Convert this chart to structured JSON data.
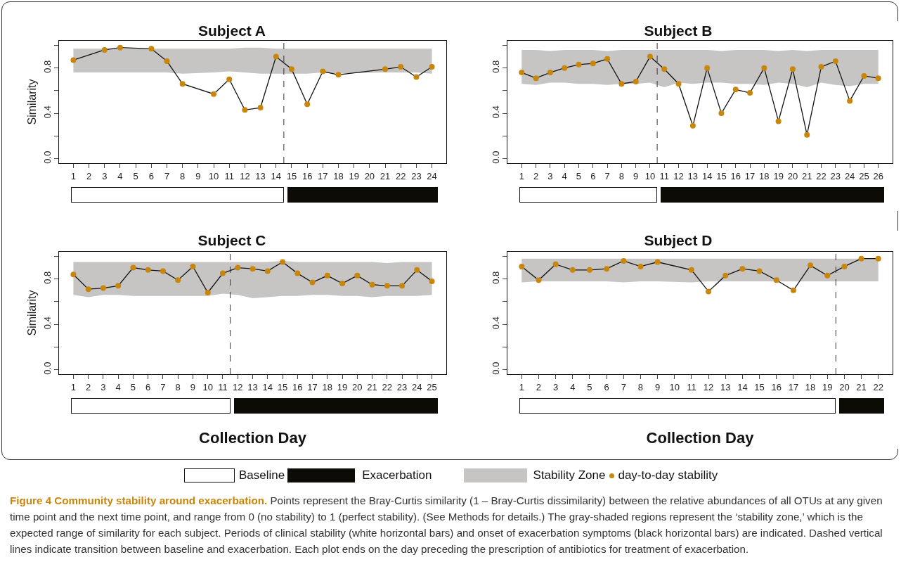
{
  "chart_data": [
    {
      "type": "line",
      "title": "Subject A",
      "ylabel": "Similarity",
      "xlim": [
        0.08,
        24.92
      ],
      "xticks": [
        1,
        2,
        3,
        4,
        5,
        6,
        7,
        8,
        9,
        10,
        11,
        12,
        13,
        14,
        15,
        16,
        17,
        18,
        19,
        20,
        21,
        22,
        23,
        24
      ],
      "ylim": [
        -0.04,
        1.04
      ],
      "yticks": [
        {
          "value": 0,
          "label": "0.0"
        },
        {
          "value": 0.2,
          "label": null
        },
        {
          "value": 0.4,
          "label": "0.4"
        },
        {
          "value": 0.6,
          "label": null
        },
        {
          "value": 0.8,
          "label": "0.8"
        },
        {
          "value": 1,
          "label": null
        }
      ],
      "grid": false,
      "marker": "circle",
      "line_style": "solid",
      "series": [
        {
          "color": "#c8860a",
          "x": [
            1,
            3,
            4,
            6,
            7,
            8,
            10,
            11,
            12,
            13,
            14,
            15,
            16,
            17,
            18,
            21,
            22,
            23,
            24
          ],
          "values": [
            0.87,
            0.96,
            0.98,
            0.97,
            0.86,
            0.66,
            0.57,
            0.7,
            0.43,
            0.45,
            0.9,
            0.79,
            0.48,
            0.77,
            0.74,
            0.79,
            0.81,
            0.72,
            0.81
          ],
          "lower": [
            0.76,
            0.76,
            0.76,
            0.76,
            0.76,
            0.75,
            0.76,
            0.77,
            0.76,
            0.75,
            0.75,
            0.75,
            0.75,
            0.76,
            0.75,
            0.76,
            0.76,
            0.76,
            0.75
          ],
          "upper": [
            0.97,
            0.97,
            0.97,
            0.97,
            0.97,
            0.97,
            0.97,
            0.97,
            0.98,
            0.98,
            0.97,
            0.97,
            0.97,
            0.97,
            0.97,
            0.97,
            0.97,
            0.97,
            0.97
          ]
        }
      ],
      "ref_lines": [
        {
          "axis": "x",
          "value": 14.5,
          "line_style": "dashed"
        }
      ]
    },
    {
      "type": "line",
      "title": "Subject B",
      "xlim": [
        0,
        27
      ],
      "xticks": [
        1,
        2,
        3,
        4,
        5,
        6,
        7,
        8,
        9,
        10,
        11,
        12,
        13,
        14,
        15,
        16,
        17,
        18,
        19,
        20,
        21,
        22,
        23,
        24,
        25,
        26
      ],
      "ylim": [
        -0.04,
        1.04
      ],
      "yticks": [
        {
          "value": 0,
          "label": "0.0"
        },
        {
          "value": 0.2,
          "label": null
        },
        {
          "value": 0.4,
          "label": "0.4"
        },
        {
          "value": 0.6,
          "label": null
        },
        {
          "value": 0.8,
          "label": "0.8"
        },
        {
          "value": 1,
          "label": null
        }
      ],
      "grid": false,
      "marker": "circle",
      "line_style": "solid",
      "series": [
        {
          "color": "#c8860a",
          "x": [
            1,
            2,
            3,
            4,
            5,
            6,
            7,
            8,
            9,
            10,
            11,
            12,
            13,
            14,
            15,
            16,
            17,
            18,
            19,
            20,
            21,
            22,
            23,
            24,
            25,
            26
          ],
          "values": [
            0.76,
            0.71,
            0.76,
            0.8,
            0.83,
            0.84,
            0.88,
            0.66,
            0.68,
            0.9,
            0.79,
            0.66,
            0.29,
            0.8,
            0.4,
            0.61,
            0.58,
            0.8,
            0.33,
            0.79,
            0.21,
            0.81,
            0.86,
            0.51,
            0.73,
            0.71
          ],
          "lower": [
            0.66,
            0.65,
            0.67,
            0.67,
            0.66,
            0.66,
            0.65,
            0.66,
            0.66,
            0.67,
            0.63,
            0.67,
            0.66,
            0.67,
            0.67,
            0.66,
            0.66,
            0.65,
            0.67,
            0.66,
            0.63,
            0.67,
            0.65,
            0.64,
            0.66,
            0.66
          ],
          "upper": [
            0.96,
            0.96,
            0.95,
            0.96,
            0.96,
            0.96,
            0.95,
            0.96,
            0.96,
            0.96,
            0.96,
            0.96,
            0.96,
            0.96,
            0.95,
            0.96,
            0.96,
            0.96,
            0.95,
            0.96,
            0.95,
            0.96,
            0.96,
            0.96,
            0.96,
            0.96
          ]
        }
      ],
      "ref_lines": [
        {
          "axis": "x",
          "value": 10.5,
          "line_style": "dashed"
        }
      ]
    },
    {
      "type": "line",
      "title": "Subject C",
      "xlabel": "Collection Day",
      "ylabel": "Similarity",
      "xlim": [
        0.04,
        25.96
      ],
      "xticks": [
        1,
        2,
        3,
        4,
        5,
        6,
        7,
        8,
        9,
        10,
        11,
        12,
        13,
        14,
        15,
        16,
        17,
        18,
        19,
        20,
        21,
        22,
        23,
        24,
        25
      ],
      "ylim": [
        -0.04,
        1.04
      ],
      "yticks": [
        {
          "value": 0,
          "label": "0.0"
        },
        {
          "value": 0.2,
          "label": null
        },
        {
          "value": 0.4,
          "label": "0.4"
        },
        {
          "value": 0.6,
          "label": null
        },
        {
          "value": 0.8,
          "label": "0.8"
        },
        {
          "value": 1,
          "label": null
        }
      ],
      "grid": false,
      "marker": "circle",
      "line_style": "solid",
      "series": [
        {
          "color": "#c8860a",
          "x": [
            1,
            2,
            3,
            4,
            5,
            6,
            7,
            8,
            9,
            10,
            11,
            12,
            13,
            14,
            15,
            16,
            17,
            18,
            19,
            20,
            21,
            22,
            23,
            24,
            25
          ],
          "values": [
            0.84,
            0.71,
            0.72,
            0.74,
            0.9,
            0.88,
            0.87,
            0.79,
            0.91,
            0.68,
            0.85,
            0.9,
            0.89,
            0.87,
            0.95,
            0.85,
            0.77,
            0.83,
            0.76,
            0.83,
            0.75,
            0.74,
            0.74,
            0.88,
            0.78
          ],
          "lower": [
            0.66,
            0.64,
            0.66,
            0.66,
            0.65,
            0.65,
            0.65,
            0.65,
            0.65,
            0.65,
            0.67,
            0.66,
            0.63,
            0.64,
            0.65,
            0.65,
            0.66,
            0.66,
            0.65,
            0.65,
            0.64,
            0.65,
            0.65,
            0.65,
            0.66
          ],
          "upper": [
            0.95,
            0.95,
            0.95,
            0.95,
            0.95,
            0.95,
            0.95,
            0.95,
            0.95,
            0.95,
            0.95,
            0.95,
            0.95,
            0.95,
            0.96,
            0.95,
            0.95,
            0.95,
            0.95,
            0.95,
            0.95,
            0.94,
            0.95,
            0.95,
            0.95
          ]
        }
      ],
      "ref_lines": [
        {
          "axis": "x",
          "value": 11.5,
          "line_style": "dashed"
        }
      ]
    },
    {
      "type": "line",
      "title": "Subject D",
      "xlabel": "Collection Day",
      "xlim": [
        0.16,
        22.84
      ],
      "xticks": [
        1,
        2,
        3,
        4,
        5,
        6,
        7,
        8,
        9,
        10,
        11,
        12,
        13,
        14,
        15,
        16,
        17,
        18,
        19,
        20,
        21,
        22
      ],
      "ylim": [
        -0.04,
        1.04
      ],
      "yticks": [
        {
          "value": 0,
          "label": "0.0"
        },
        {
          "value": 0.2,
          "label": null
        },
        {
          "value": 0.4,
          "label": "0.4"
        },
        {
          "value": 0.6,
          "label": null
        },
        {
          "value": 0.8,
          "label": "0.8"
        },
        {
          "value": 1,
          "label": null
        }
      ],
      "grid": false,
      "marker": "circle",
      "line_style": "solid",
      "series": [
        {
          "color": "#c8860a",
          "x": [
            1,
            2,
            3,
            4,
            5,
            6,
            7,
            8,
            9,
            11,
            12,
            13,
            14,
            15,
            16,
            17,
            18,
            19,
            20,
            21,
            22
          ],
          "values": [
            0.91,
            0.79,
            0.93,
            0.88,
            0.88,
            0.89,
            0.96,
            0.91,
            0.95,
            0.88,
            0.69,
            0.83,
            0.89,
            0.87,
            0.79,
            0.7,
            0.92,
            0.83,
            0.91,
            0.98,
            0.98
          ],
          "lower": [
            0.77,
            0.78,
            0.78,
            0.78,
            0.78,
            0.78,
            0.77,
            0.78,
            0.78,
            0.77,
            0.78,
            0.78,
            0.78,
            0.78,
            0.78,
            0.78,
            0.78,
            0.78,
            0.78,
            0.78,
            0.78
          ],
          "upper": [
            0.98,
            0.98,
            0.98,
            0.98,
            0.98,
            0.98,
            0.98,
            0.98,
            0.98,
            0.98,
            0.98,
            0.98,
            0.98,
            0.98,
            0.98,
            0.98,
            0.98,
            0.98,
            0.98,
            0.98,
            0.98
          ]
        }
      ],
      "ref_lines": [
        {
          "axis": "x",
          "value": 19.5,
          "line_style": "dashed"
        }
      ]
    },
    {
      "type": "other",
      "annotations": [
        "Baseline",
        "Exacerbation",
        "Stability Zone",
        "day-to-day stability",
        "Figure 4 Community stability around exacerbation.",
        "Points represent the Bray-Curtis similarity (1 – Bray-Curtis dissimilarity) between the relative abundances of all OTUs at any given time point and the next time point, and range from 0 (no stability) to 1 (perfect stability). (See Methods for details.) The gray-shaded regions represent the ‘stability zone,’ which is the expected range of similarity for each subject. Periods of clinical stability (white horizontal bars) and onset of exacerbation symptoms (black horizontal bars) are indicated. Dashed vertical lines indicate transition between baseline and exacerbation. Each plot ends on the day preceding the prescription of antibiotics for treatment of exacerbation."
      ]
    }
  ]
}
